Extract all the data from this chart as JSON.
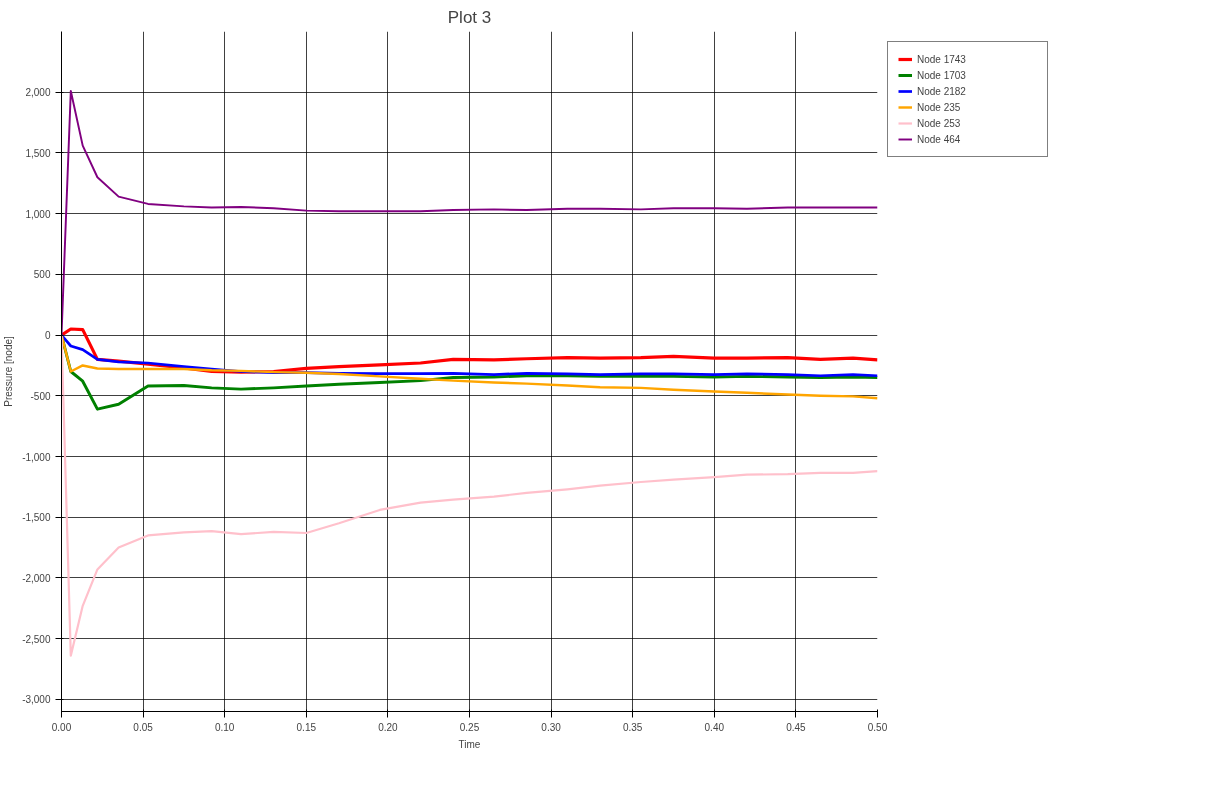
{
  "chart_data": {
    "type": "line",
    "title": "Plot 3",
    "xlabel": "Time",
    "ylabel": "Pressure [node]",
    "x": [
      0,
      0.0057,
      0.013,
      0.022,
      0.035,
      0.053,
      0.075,
      0.092,
      0.11,
      0.13,
      0.15,
      0.17,
      0.195,
      0.22,
      0.24,
      0.265,
      0.285,
      0.31,
      0.33,
      0.355,
      0.375,
      0.4,
      0.42,
      0.445,
      0.465,
      0.485,
      0.5
    ],
    "series": [
      {
        "name": "Node 1743",
        "color": "#ff0000",
        "values": [
          0,
          50,
          45,
          -200,
          -215,
          -240,
          -270,
          -300,
          -305,
          -300,
          -275,
          -260,
          -245,
          -230,
          -200,
          -205,
          -195,
          -185,
          -190,
          -185,
          -175,
          -190,
          -190,
          -185,
          -200,
          -190,
          -205
        ]
      },
      {
        "name": "Node 1703",
        "color": "#008000",
        "values": [
          0,
          -300,
          -380,
          -610,
          -570,
          -420,
          -415,
          -435,
          -445,
          -435,
          -420,
          -405,
          -390,
          -375,
          -350,
          -345,
          -335,
          -335,
          -340,
          -340,
          -340,
          -345,
          -340,
          -345,
          -350,
          -345,
          -350
        ]
      },
      {
        "name": "Node 2182",
        "color": "#0000ff",
        "values": [
          0,
          -90,
          -120,
          -200,
          -220,
          -230,
          -260,
          -280,
          -300,
          -310,
          -310,
          -315,
          -318,
          -318,
          -315,
          -325,
          -315,
          -320,
          -325,
          -320,
          -320,
          -325,
          -320,
          -325,
          -335,
          -325,
          -335
        ]
      },
      {
        "name": "Node 235",
        "color": "#ffa500",
        "values": [
          0,
          -300,
          -250,
          -275,
          -280,
          -280,
          -280,
          -290,
          -295,
          -305,
          -310,
          -320,
          -340,
          -360,
          -375,
          -390,
          -400,
          -415,
          -430,
          -435,
          -450,
          -465,
          -475,
          -490,
          -500,
          -505,
          -520
        ]
      },
      {
        "name": "Node 253",
        "color": "#ffc0cb",
        "values": [
          0,
          -2640,
          -2230,
          -1930,
          -1750,
          -1650,
          -1625,
          -1615,
          -1640,
          -1620,
          -1630,
          -1550,
          -1440,
          -1380,
          -1355,
          -1330,
          -1300,
          -1270,
          -1240,
          -1210,
          -1190,
          -1170,
          -1150,
          -1145,
          -1135,
          -1135,
          -1120
        ]
      },
      {
        "name": "Node 464",
        "color": "#800080",
        "values": [
          0,
          2010,
          1560,
          1300,
          1140,
          1080,
          1060,
          1050,
          1055,
          1045,
          1025,
          1020,
          1020,
          1020,
          1030,
          1035,
          1030,
          1040,
          1040,
          1035,
          1045,
          1045,
          1040,
          1050,
          1050,
          1050,
          1050
        ]
      }
    ],
    "xlim": [
      0,
      0.5
    ],
    "ylim": [
      -3100,
      2500
    ],
    "xticks": [
      {
        "value": 0,
        "label": "0.00"
      },
      {
        "value": 0.05,
        "label": "0.05"
      },
      {
        "value": 0.1,
        "label": "0.10"
      },
      {
        "value": 0.15,
        "label": "0.15"
      },
      {
        "value": 0.2,
        "label": "0.20"
      },
      {
        "value": 0.25,
        "label": "0.25"
      },
      {
        "value": 0.3,
        "label": "0.30"
      },
      {
        "value": 0.35,
        "label": "0.35"
      },
      {
        "value": 0.4,
        "label": "0.40"
      },
      {
        "value": 0.45,
        "label": "0.45"
      },
      {
        "value": 0.5,
        "label": "0.50"
      }
    ],
    "yticks": [
      {
        "value": -3000,
        "label": "-3,000"
      },
      {
        "value": -2500,
        "label": "-2,500"
      },
      {
        "value": -2000,
        "label": "-2,000"
      },
      {
        "value": -1500,
        "label": "-1,500"
      },
      {
        "value": -1000,
        "label": "-1,000"
      },
      {
        "value": -500,
        "label": "-500"
      },
      0,
      500,
      {
        "value": 1000,
        "label": "1,000"
      },
      {
        "value": 1500,
        "label": "1,500"
      },
      {
        "value": 2000,
        "label": "2,000"
      }
    ],
    "grid": true,
    "legend": "right",
    "marker": "none",
    "line_style": "solid"
  }
}
